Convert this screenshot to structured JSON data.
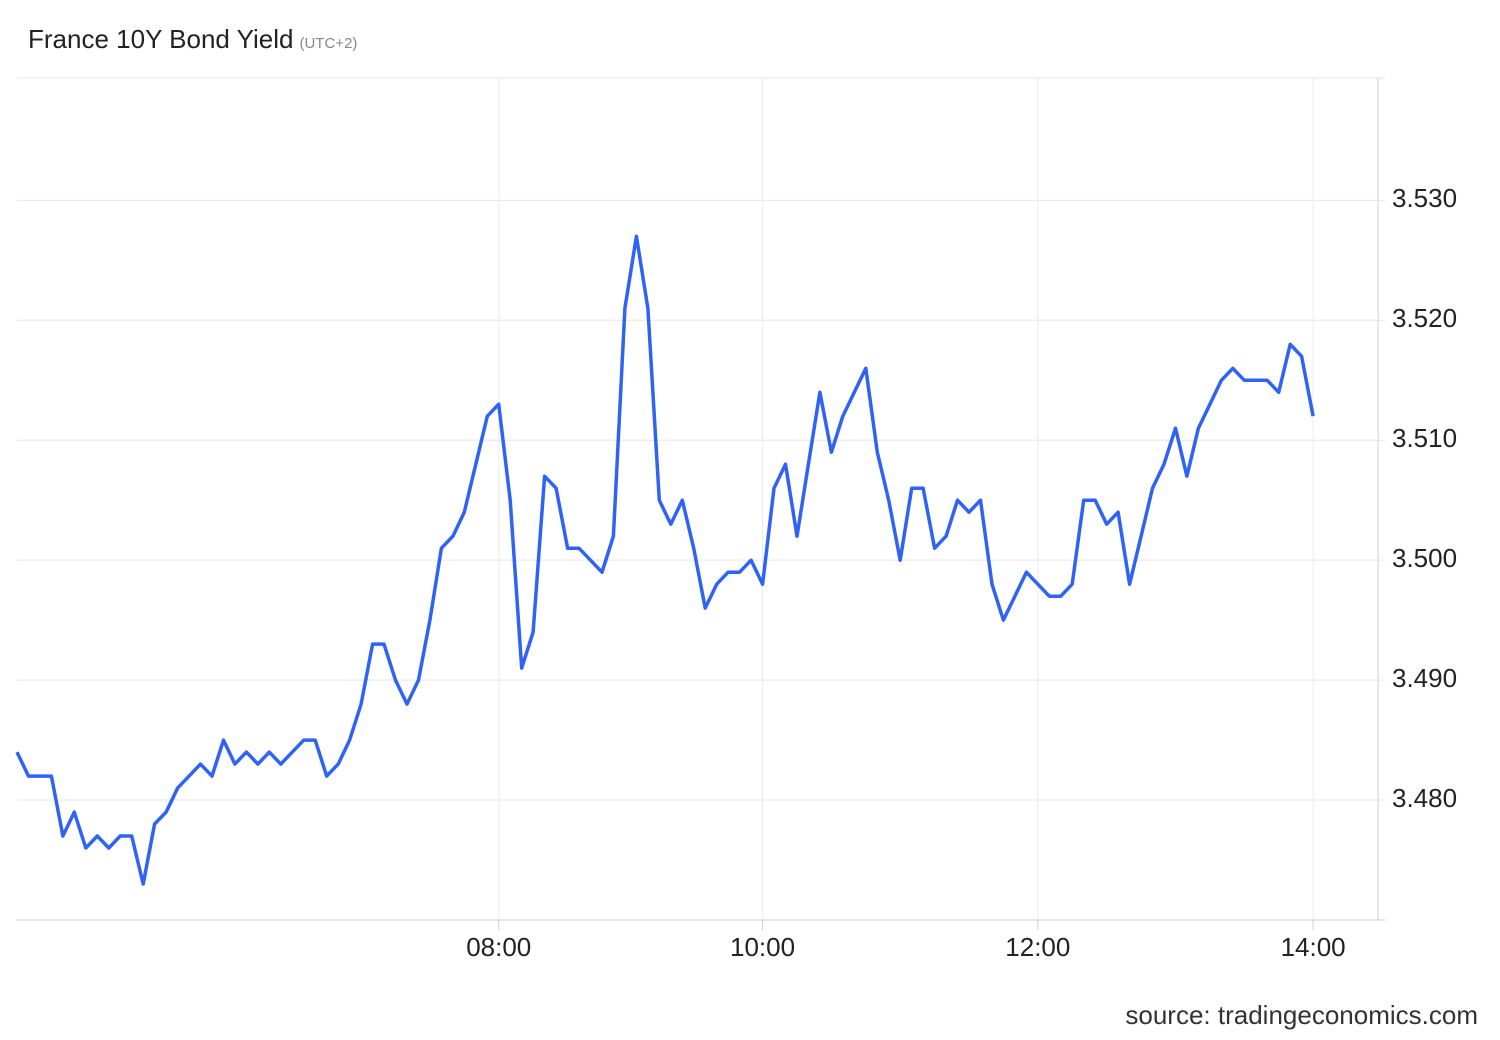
{
  "chart_data": {
    "type": "line",
    "title": "France 10Y Bond Yield",
    "subtitle": "(UTC+2)",
    "source": "source: tradingeconomics.com",
    "categories": [
      null,
      null,
      null,
      null,
      null,
      null,
      null,
      null,
      null,
      null,
      null,
      null,
      null,
      null,
      null,
      null,
      null,
      null,
      null,
      null,
      null,
      null,
      null,
      null,
      null,
      null,
      null,
      null,
      null,
      null,
      null,
      null,
      null,
      null,
      null,
      null,
      null,
      null,
      null,
      null,
      null,
      null,
      "08:00",
      null,
      null,
      null,
      null,
      null,
      null,
      null,
      null,
      null,
      null,
      null,
      null,
      null,
      null,
      null,
      null,
      null,
      null,
      null,
      null,
      null,
      null,
      "10:00",
      null,
      null,
      null,
      null,
      null,
      null,
      null,
      null,
      null,
      null,
      null,
      null,
      null,
      null,
      null,
      null,
      null,
      null,
      null,
      null,
      null,
      null,
      null,
      "12:00",
      null,
      null,
      null,
      null,
      null,
      null,
      null,
      null,
      null,
      null,
      null,
      null,
      null,
      null,
      null,
      null,
      null,
      null,
      null,
      null,
      null,
      null,
      null,
      "14:00"
    ],
    "values": [
      3.484,
      3.482,
      3.482,
      3.482,
      3.477,
      3.479,
      3.476,
      3.477,
      3.476,
      3.477,
      3.477,
      3.473,
      3.478,
      3.479,
      3.481,
      3.482,
      3.483,
      3.482,
      3.485,
      3.483,
      3.484,
      3.483,
      3.484,
      3.483,
      3.484,
      3.485,
      3.485,
      3.482,
      3.483,
      3.485,
      3.488,
      3.493,
      3.493,
      3.49,
      3.488,
      3.49,
      3.495,
      3.501,
      3.502,
      3.504,
      3.508,
      3.512,
      3.513,
      3.505,
      3.491,
      3.494,
      3.507,
      3.506,
      3.501,
      3.501,
      3.5,
      3.499,
      3.502,
      3.521,
      3.527,
      3.521,
      3.505,
      3.503,
      3.505,
      3.501,
      3.496,
      3.498,
      3.499,
      3.499,
      3.5,
      3.498,
      3.506,
      3.508,
      3.502,
      3.508,
      3.514,
      3.509,
      3.512,
      3.514,
      3.516,
      3.509,
      3.505,
      3.5,
      3.506,
      3.506,
      3.501,
      3.502,
      3.505,
      3.504,
      3.505,
      3.498,
      3.495,
      3.497,
      3.499,
      3.498,
      3.497,
      3.497,
      3.498,
      3.505,
      3.505,
      3.503,
      3.504,
      3.498,
      3.502,
      3.506,
      3.508,
      3.511,
      3.507,
      3.511,
      3.513,
      3.515,
      3.516,
      3.515,
      3.515,
      3.515,
      3.514,
      3.518,
      3.517,
      3.512
    ],
    "color": "#2f63f5",
    "ylim": [
      3.47,
      3.5402
    ],
    "yticks": [
      {
        "value": 3.48,
        "label": "3.480"
      },
      {
        "value": 3.49,
        "label": "3.490"
      },
      {
        "value": 3.5,
        "label": "3.500"
      },
      {
        "value": 3.51,
        "label": "3.510"
      },
      {
        "value": 3.52,
        "label": "3.520"
      },
      {
        "value": 3.53,
        "label": "3.530"
      }
    ],
    "grid": true
  }
}
